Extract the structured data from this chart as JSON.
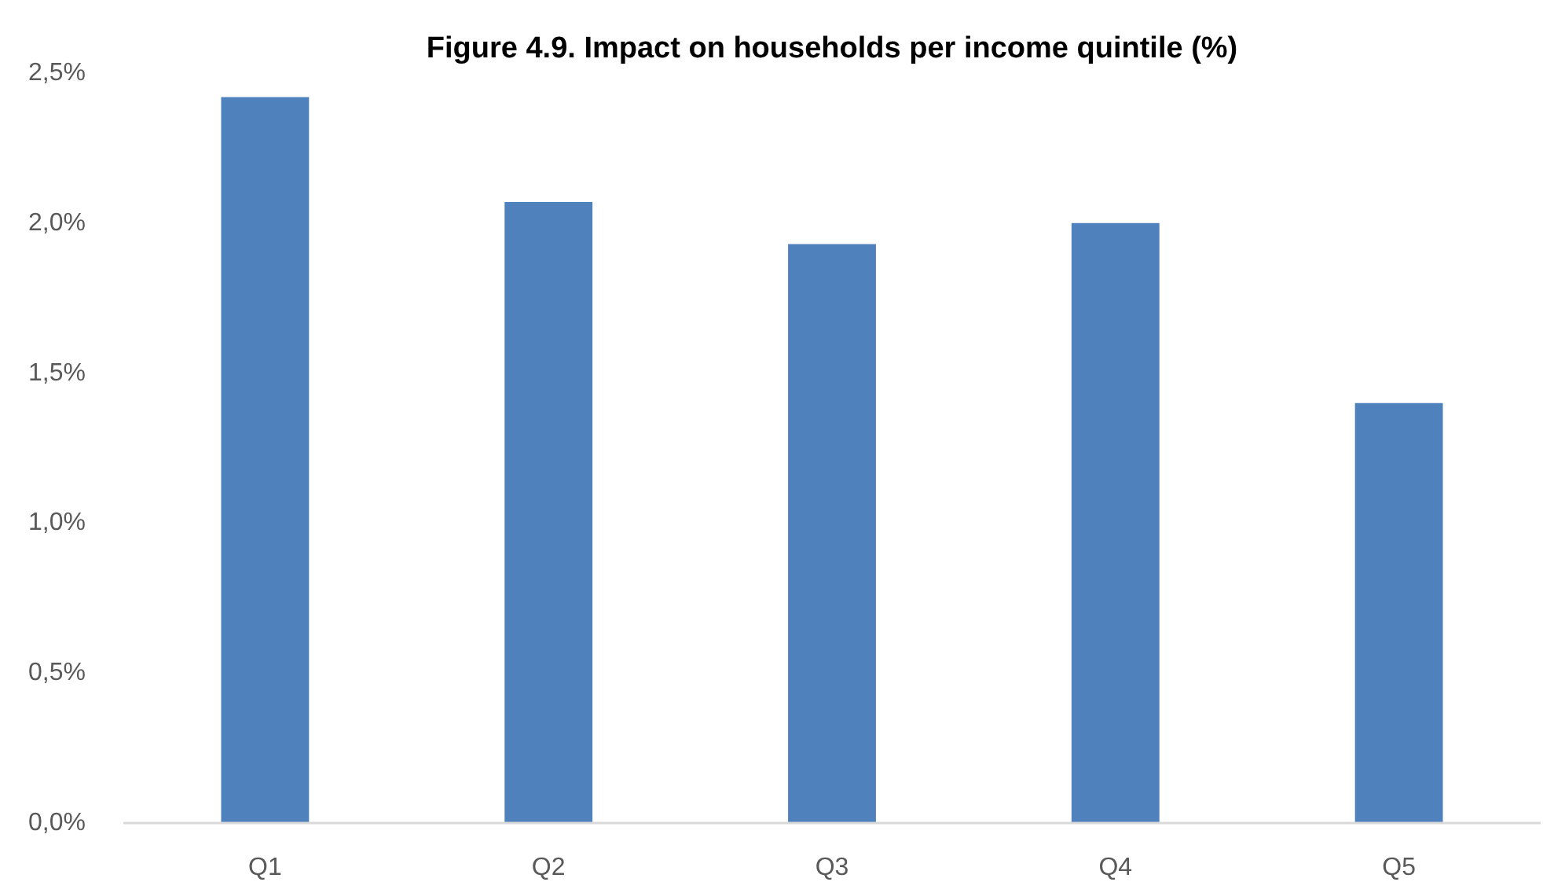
{
  "chart_data": {
    "type": "bar",
    "title": "Figure 4.9. Impact on households per income quintile (%)",
    "categories": [
      "Q1",
      "Q2",
      "Q3",
      "Q4",
      "Q5"
    ],
    "values": [
      2.42,
      2.07,
      1.93,
      2.0,
      1.4
    ],
    "color": "#4f81bd",
    "ylim": [
      0,
      2.5
    ],
    "yticks": [
      {
        "value": 0,
        "label": "0,0%"
      },
      {
        "value": 0.5,
        "label": "0,5%"
      },
      {
        "value": 1.0,
        "label": "1,0%"
      },
      {
        "value": 1.5,
        "label": "1,5%"
      },
      {
        "value": 2.0,
        "label": "2,0%"
      },
      {
        "value": 2.5,
        "label": "2,5%"
      }
    ],
    "grid": false
  }
}
